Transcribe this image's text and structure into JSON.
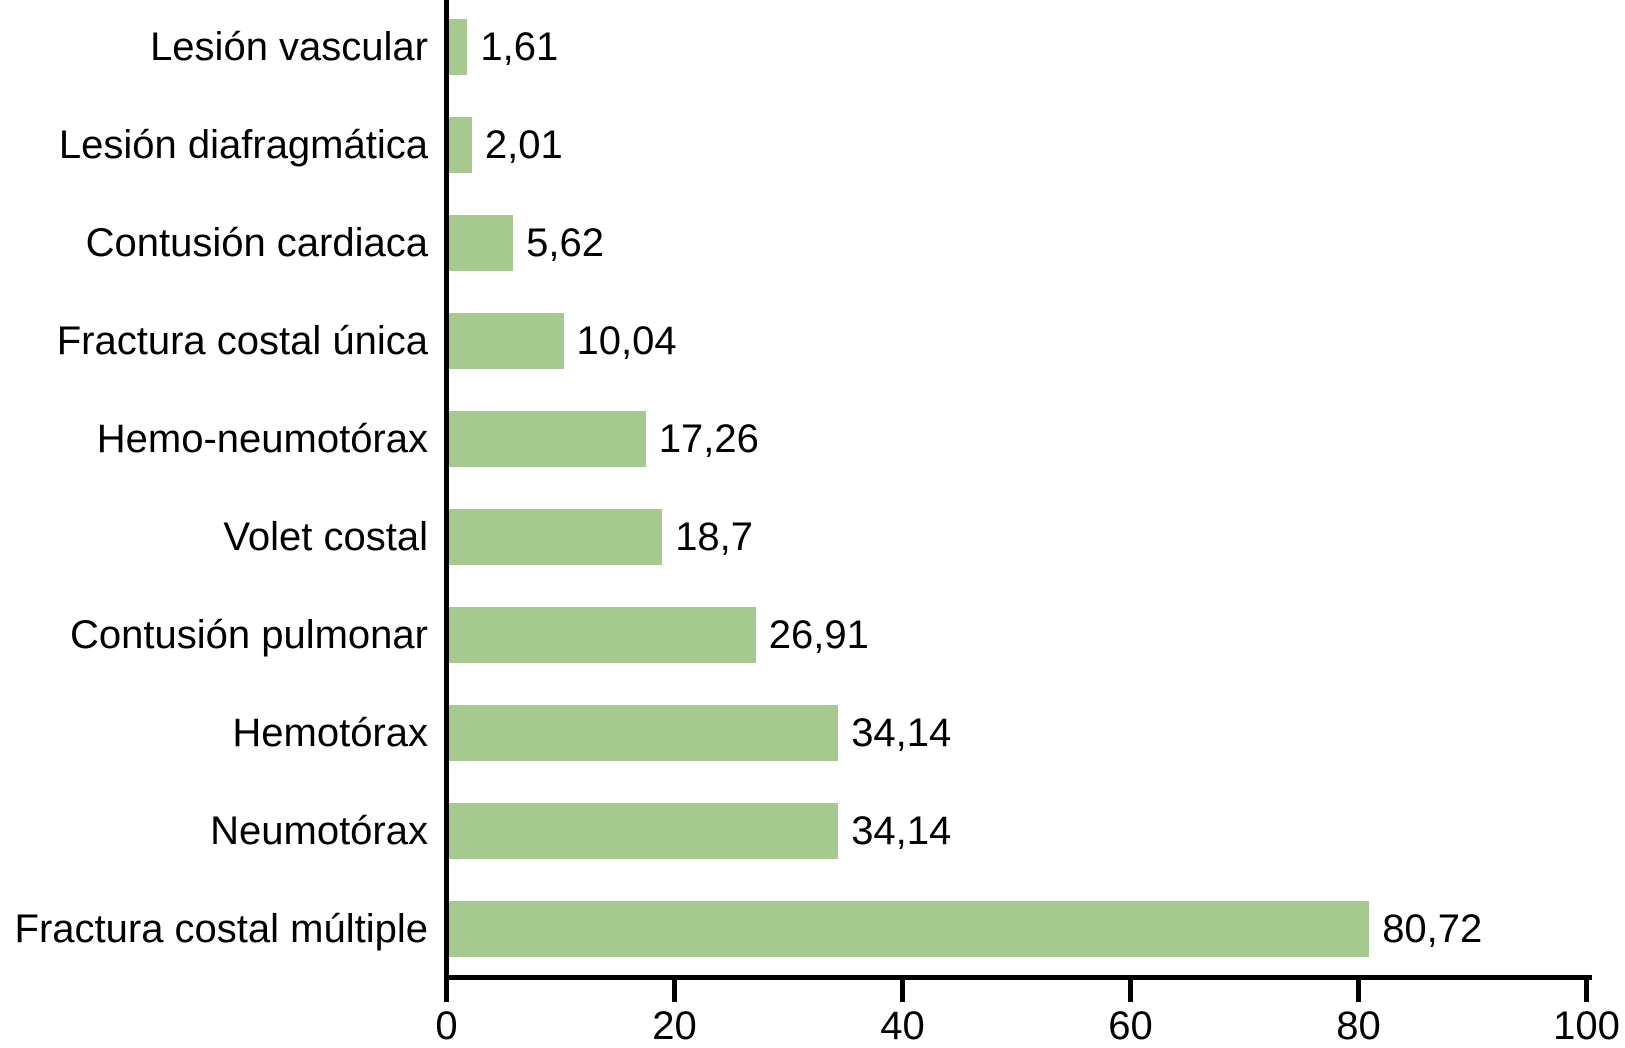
{
  "chart_data": {
    "type": "bar",
    "orientation": "horizontal",
    "title": "",
    "xlabel": "",
    "ylabel": "",
    "categories": [
      "Lesión vascular",
      "Lesión diafragmática",
      "Contusión cardiaca",
      "Fractura costal única",
      "Hemo-neumotórax",
      "Volet costal",
      "Contusión pulmonar",
      "Hemotórax",
      "Neumotórax",
      "Fractura costal múltiple"
    ],
    "values": [
      1.61,
      2.01,
      5.62,
      10.04,
      17.26,
      18.7,
      26.91,
      34.14,
      34.14,
      80.72
    ],
    "value_labels": [
      "1,61",
      "2,01",
      "5,62",
      "10,04",
      "17,26",
      "18,7",
      "26,91",
      "34,14",
      "34,14",
      "80,72"
    ],
    "xlim": [
      0,
      100
    ],
    "xticks": [
      0,
      20,
      40,
      60,
      80,
      100
    ],
    "xtick_labels": [
      "0",
      "20",
      "40",
      "60",
      "80",
      "100"
    ],
    "grid": false,
    "legend": null,
    "bar_color": "#a5c98e",
    "axis_color": "#000000",
    "text_color": "#000000"
  }
}
